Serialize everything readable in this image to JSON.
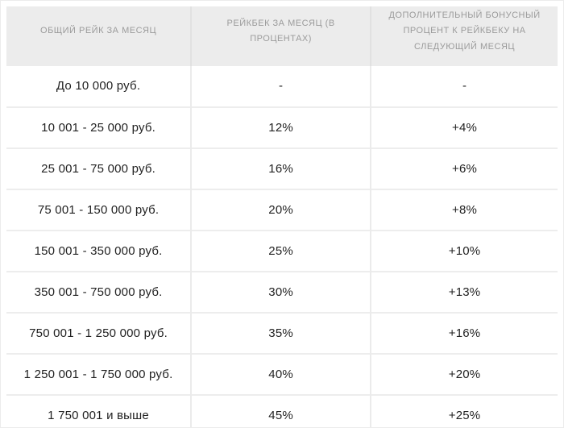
{
  "chart_data": {
    "type": "table",
    "columns": [
      "ОБЩИЙ РЕЙК ЗА МЕСЯЦ",
      "РЕЙКБЕК ЗА МЕСЯЦ (В ПРОЦЕНТАХ)",
      "ДОПОЛНИТЕЛЬНЫЙ БОНУСНЫЙ ПРОЦЕНТ К РЕЙКБЕКУ НА СЛЕДУЮЩИЙ МЕСЯЦ"
    ],
    "rows": [
      [
        "До 10 000 руб.",
        "-",
        "-"
      ],
      [
        "10 001 - 25 000 руб.",
        "12%",
        "+4%"
      ],
      [
        "25 001 - 75 000 руб.",
        "16%",
        "+6%"
      ],
      [
        "75 001 - 150 000 руб.",
        "20%",
        "+8%"
      ],
      [
        "150 001 - 350 000 руб.",
        "25%",
        "+10%"
      ],
      [
        "350 001 - 750 000 руб.",
        "30%",
        "+13%"
      ],
      [
        "750 001 - 1 250 000 руб.",
        "35%",
        "+16%"
      ],
      [
        "1 250 001 - 1 750 000 руб.",
        "40%",
        "+20%"
      ],
      [
        "1 750 001 и выше",
        "45%",
        "+25%"
      ]
    ]
  },
  "colors": {
    "header_bg": "#ececec",
    "header_text": "#9b9b9b",
    "body_text": "#222222",
    "header_divider": "#e1e1e1",
    "cell_divider": "#ebebeb",
    "row_divider": "#ededed",
    "table_bottom_border": "#dedede",
    "frame_border": "#ececec",
    "page_bg": "#ffffff"
  }
}
